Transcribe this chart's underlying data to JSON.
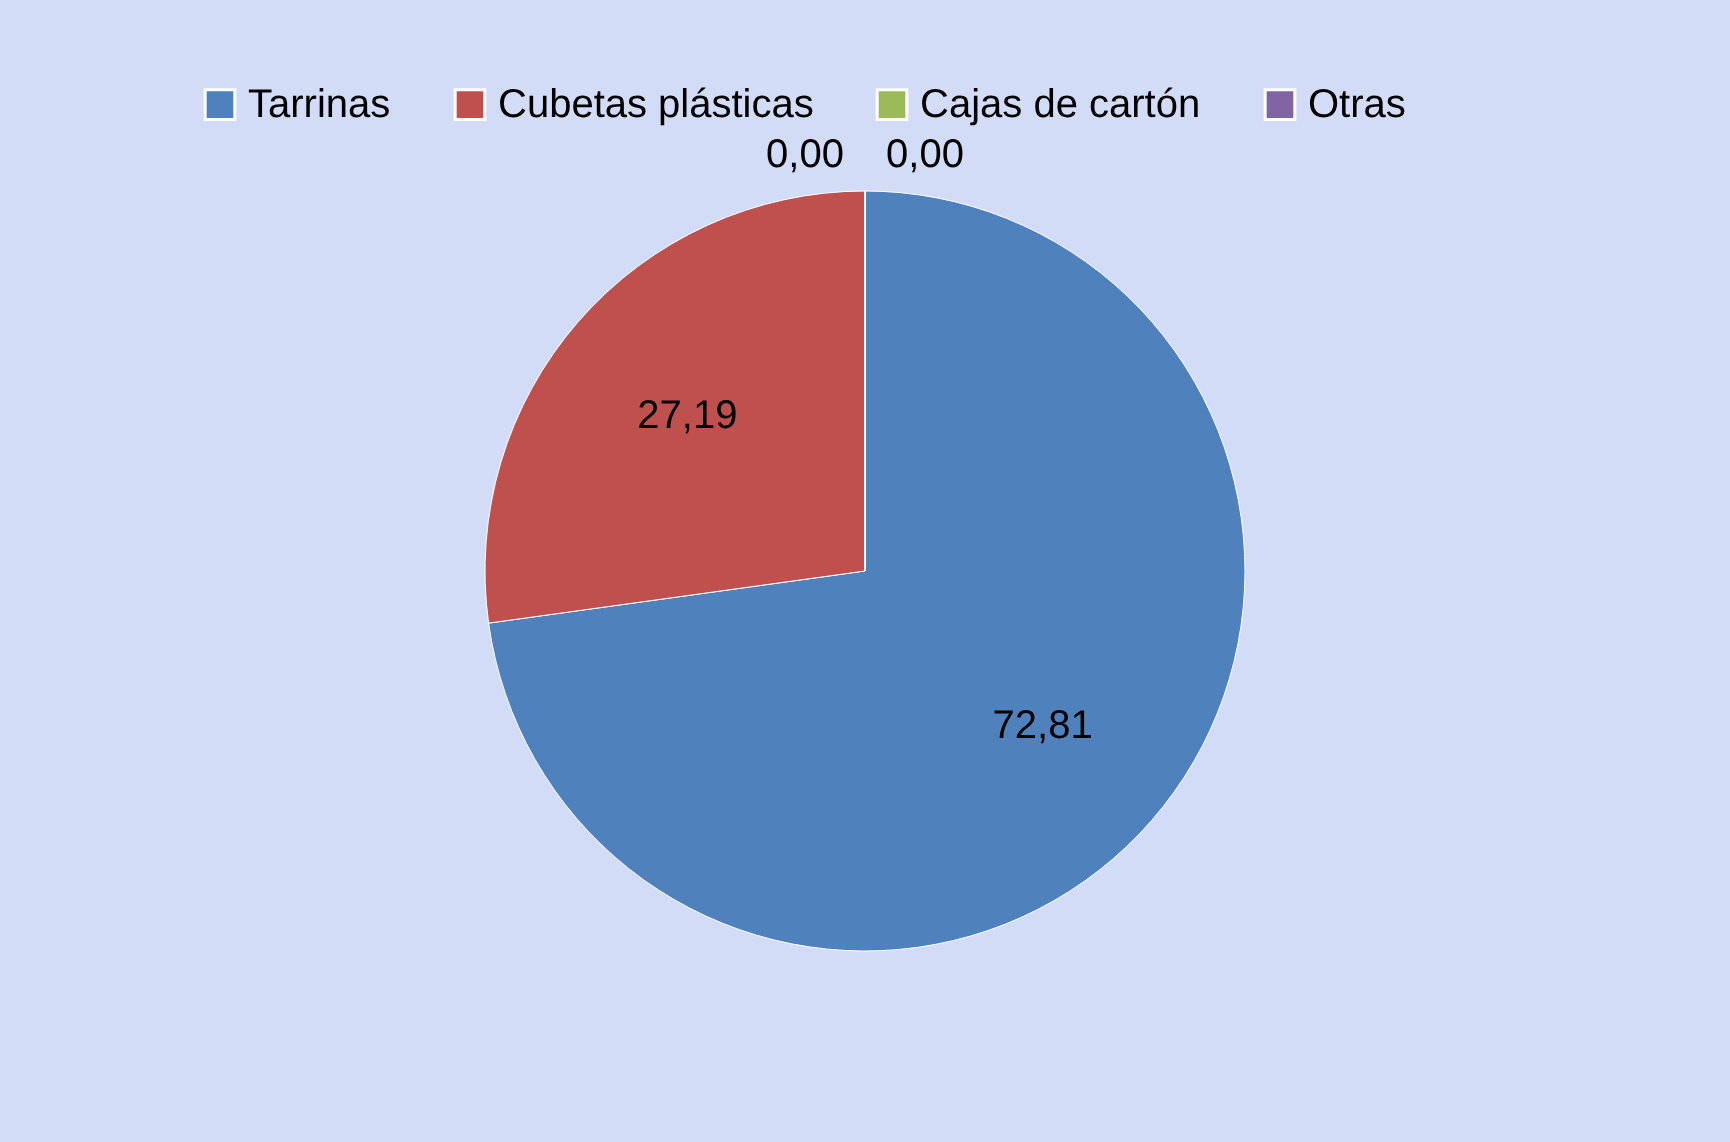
{
  "chart_data": {
    "type": "pie",
    "categories": [
      "Tarrinas",
      "Cubetas plásticas",
      "Cajas de cartón",
      "Otras"
    ],
    "values": [
      72.81,
      27.19,
      0.0,
      0.0
    ],
    "colors": [
      "#4f81bd",
      "#c0504d",
      "#9bbb59",
      "#8064a2"
    ],
    "value_labels": [
      "72,81",
      "27,19",
      "0,00",
      "0,00"
    ],
    "legend": "top"
  }
}
